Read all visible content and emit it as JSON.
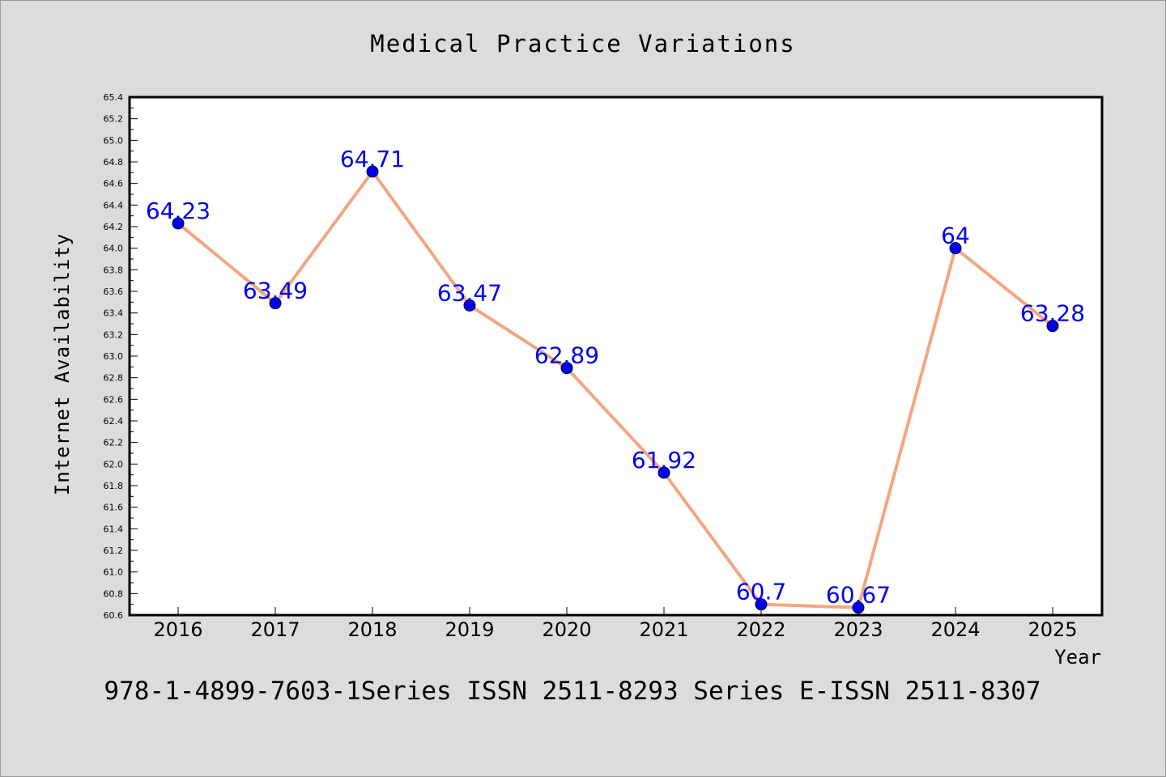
{
  "chart_data": {
    "type": "line",
    "title": "Medical Practice Variations",
    "xlabel": "Year",
    "ylabel": "Internet Availability",
    "categories": [
      "2016",
      "2017",
      "2018",
      "2019",
      "2020",
      "2021",
      "2022",
      "2023",
      "2024",
      "2025"
    ],
    "series": [
      {
        "values": [
          64.23,
          63.49,
          64.71,
          63.47,
          62.89,
          61.92,
          60.7,
          60.67,
          64,
          63.28
        ],
        "labels": [
          "64.23",
          "63.49",
          "64.71",
          "63.47",
          "62.89",
          "61.92",
          "60.7",
          "60.67",
          "64",
          "63.28"
        ],
        "line_color": "#f4a582",
        "marker_color": "#0000ee",
        "label_color": "#0000ee"
      }
    ],
    "ylim": [
      60.6,
      65.4
    ],
    "yticks": [
      "60.6",
      "60.8",
      "61.0",
      "61.2",
      "61.4",
      "61.6",
      "61.8",
      "62.0",
      "62.2",
      "62.4",
      "62.6",
      "62.8",
      "63.0",
      "63.2",
      "63.4",
      "63.6",
      "63.8",
      "64.0",
      "64.2",
      "64.4",
      "64.6",
      "64.8",
      "65.0",
      "65.2",
      "65.4"
    ],
    "grid": false,
    "legend": "none"
  },
  "footer": {
    "text": "978-1-4899-7603-1Series ISSN 2511-8293 Series E-ISSN 2511-8307"
  }
}
